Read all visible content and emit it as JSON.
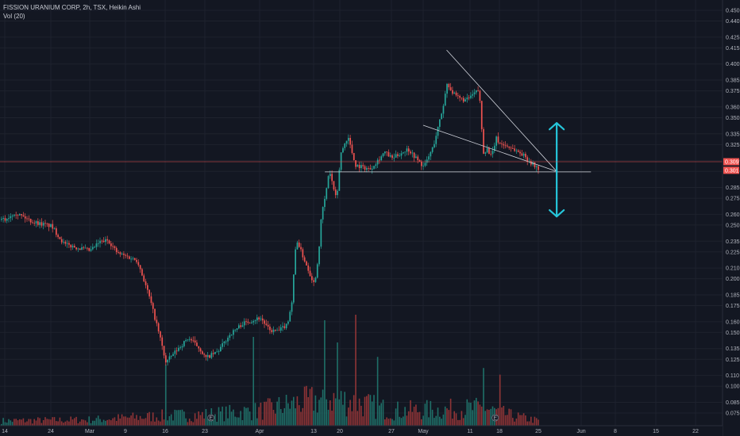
{
  "legend": {
    "symbol": "FISSION URANIUM CORP, 2h, TSX, Heikin Ashi",
    "volume": "Vol (20)"
  },
  "colors": {
    "background": "#131722",
    "grid": "#1e222d",
    "up": "#26a69a",
    "down": "#ef5350",
    "up_volume": "#1f6f68",
    "down_volume": "#8f3436",
    "drawing": "#d1d4dc",
    "arrow": "#26c6da",
    "price_line": "#ef5350",
    "axis_border": "#2a2e39"
  },
  "chart_data": {
    "type": "candlestick",
    "title": "FISSION URANIUM CORP, 2h, TSX, Heikin Ashi",
    "ylim": [
      0.0625,
      0.4575
    ],
    "grid": true,
    "y_ticks": [
      "0.450",
      "0.440",
      "0.425",
      "0.415",
      "0.400",
      "0.385",
      "0.375",
      "0.360",
      "0.350",
      "0.335",
      "0.325",
      "0.310",
      "0.300",
      "0.285",
      "0.275",
      "0.260",
      "0.250",
      "0.235",
      "0.225",
      "0.210",
      "0.200",
      "0.185",
      "0.175",
      "0.160",
      "0.150",
      "0.135",
      "0.125",
      "0.110",
      "0.100",
      "0.085",
      "0.075"
    ],
    "y_tick_values": [
      0.45,
      0.44,
      0.425,
      0.415,
      0.4,
      0.385,
      0.375,
      0.36,
      0.35,
      0.335,
      0.325,
      0.31,
      0.3,
      0.285,
      0.275,
      0.26,
      0.25,
      0.235,
      0.225,
      0.21,
      0.2,
      0.185,
      0.175,
      0.16,
      0.15,
      0.135,
      0.125,
      0.11,
      0.1,
      0.085,
      0.075
    ],
    "x_ticks": [
      "14",
      "24",
      "Mar",
      "9",
      "16",
      "23",
      "Apr",
      "13",
      "20",
      "27",
      "May",
      "11",
      "18",
      "25",
      "Jun",
      "8",
      "15",
      "22"
    ],
    "x_tick_dates": [
      "2020-02-14",
      "2020-02-24",
      "2020-03-01",
      "2020-03-09",
      "2020-03-16",
      "2020-03-23",
      "2020-04-01",
      "2020-04-13",
      "2020-04-20",
      "2020-04-27",
      "2020-05-01",
      "2020-05-11",
      "2020-05-18",
      "2020-05-25",
      "2020-06-01",
      "2020-06-08",
      "2020-06-15",
      "2020-06-22"
    ],
    "price_labels": [
      "0.309",
      "0.301"
    ],
    "price_label_values": [
      0.309,
      0.301
    ],
    "price_path": [
      [
        "2020-02-14",
        0.255
      ],
      [
        "2020-02-16",
        0.262
      ],
      [
        "2020-02-20",
        0.253
      ],
      [
        "2020-02-24",
        0.249
      ],
      [
        "2020-02-26",
        0.232
      ],
      [
        "2020-02-28",
        0.229
      ],
      [
        "2020-03-01",
        0.226
      ],
      [
        "2020-03-03",
        0.234
      ],
      [
        "2020-03-05",
        0.236
      ],
      [
        "2020-03-07",
        0.224
      ],
      [
        "2020-03-09",
        0.221
      ],
      [
        "2020-03-11",
        0.217
      ],
      [
        "2020-03-13",
        0.185
      ],
      [
        "2020-03-15",
        0.145
      ],
      [
        "2020-03-16",
        0.122
      ],
      [
        "2020-03-18",
        0.134
      ],
      [
        "2020-03-20",
        0.145
      ],
      [
        "2020-03-22",
        0.135
      ],
      [
        "2020-03-23",
        0.126
      ],
      [
        "2020-03-25",
        0.132
      ],
      [
        "2020-03-27",
        0.148
      ],
      [
        "2020-03-29",
        0.158
      ],
      [
        "2020-04-01",
        0.164
      ],
      [
        "2020-04-03",
        0.152
      ],
      [
        "2020-04-05",
        0.151
      ],
      [
        "2020-04-07",
        0.158
      ],
      [
        "2020-04-08",
        0.178
      ],
      [
        "2020-04-09",
        0.238
      ],
      [
        "2020-04-10",
        0.226
      ],
      [
        "2020-04-12",
        0.205
      ],
      [
        "2020-04-13",
        0.195
      ],
      [
        "2020-04-14",
        0.218
      ],
      [
        "2020-04-15",
        0.262
      ],
      [
        "2020-04-16",
        0.277
      ],
      [
        "2020-04-17",
        0.302
      ],
      [
        "2020-04-18",
        0.286
      ],
      [
        "2020-04-19",
        0.272
      ],
      [
        "2020-04-20",
        0.316
      ],
      [
        "2020-04-21",
        0.333
      ],
      [
        "2020-04-22",
        0.306
      ],
      [
        "2020-04-24",
        0.302
      ],
      [
        "2020-04-26",
        0.318
      ],
      [
        "2020-04-27",
        0.312
      ],
      [
        "2020-04-29",
        0.321
      ],
      [
        "2020-05-01",
        0.304
      ],
      [
        "2020-05-03",
        0.323
      ],
      [
        "2020-05-05",
        0.358
      ],
      [
        "2020-05-06",
        0.383
      ],
      [
        "2020-05-07",
        0.374
      ],
      [
        "2020-05-08",
        0.369
      ],
      [
        "2020-05-10",
        0.366
      ],
      [
        "2020-05-12",
        0.373
      ],
      [
        "2020-05-13",
        0.376
      ],
      [
        "2020-05-14",
        0.318
      ],
      [
        "2020-05-15",
        0.321
      ],
      [
        "2020-05-16",
        0.313
      ],
      [
        "2020-05-17",
        0.331
      ],
      [
        "2020-05-18",
        0.326
      ],
      [
        "2020-05-20",
        0.322
      ],
      [
        "2020-05-22",
        0.316
      ],
      [
        "2020-05-24",
        0.306
      ],
      [
        "2020-05-25",
        0.302
      ]
    ],
    "volume_profile": [
      [
        "2020-02-14",
        0.1
      ],
      [
        "2020-03-01",
        0.12
      ],
      [
        "2020-03-16",
        0.2
      ],
      [
        "2020-03-23",
        0.22
      ],
      [
        "2020-04-01",
        0.3
      ],
      [
        "2020-04-09",
        0.45
      ],
      [
        "2020-04-17",
        0.55
      ],
      [
        "2020-04-21",
        0.5
      ],
      [
        "2020-04-27",
        0.3
      ],
      [
        "2020-05-05",
        0.32
      ],
      [
        "2020-05-14",
        0.35
      ],
      [
        "2020-05-20",
        0.2
      ],
      [
        "2020-05-25",
        0.1
      ]
    ],
    "volume_spikes": [
      [
        "2020-03-16",
        0.55
      ],
      [
        "2020-03-31",
        0.8
      ],
      [
        "2020-04-19",
        0.75
      ],
      [
        "2020-04-22",
        1.0
      ],
      [
        "2020-04-16",
        0.95
      ],
      [
        "2020-04-25",
        0.62
      ],
      [
        "2020-05-14",
        0.52
      ],
      [
        "2020-05-18",
        0.46
      ]
    ],
    "event_markers": [
      {
        "label": "E",
        "date": "2020-03-24"
      },
      {
        "label": "E",
        "date": "2020-05-17"
      }
    ]
  },
  "drawings": {
    "support_line": {
      "from": [
        "2020-04-16",
        0.2995
      ],
      "to": [
        "2020-06-03",
        0.2995
      ]
    },
    "falling_wedge_upper": {
      "from": [
        "2020-05-06",
        0.413
      ],
      "to": [
        "2020-05-28",
        0.3
      ]
    },
    "falling_wedge_lower": {
      "from": [
        "2020-05-01",
        0.343
      ],
      "to": [
        "2020-05-28",
        0.3
      ]
    },
    "up_arrow": {
      "date": "2020-05-28",
      "from": 0.3,
      "to": 0.345
    },
    "down_arrow": {
      "date": "2020-05-28",
      "from": 0.3,
      "to": 0.258
    }
  }
}
